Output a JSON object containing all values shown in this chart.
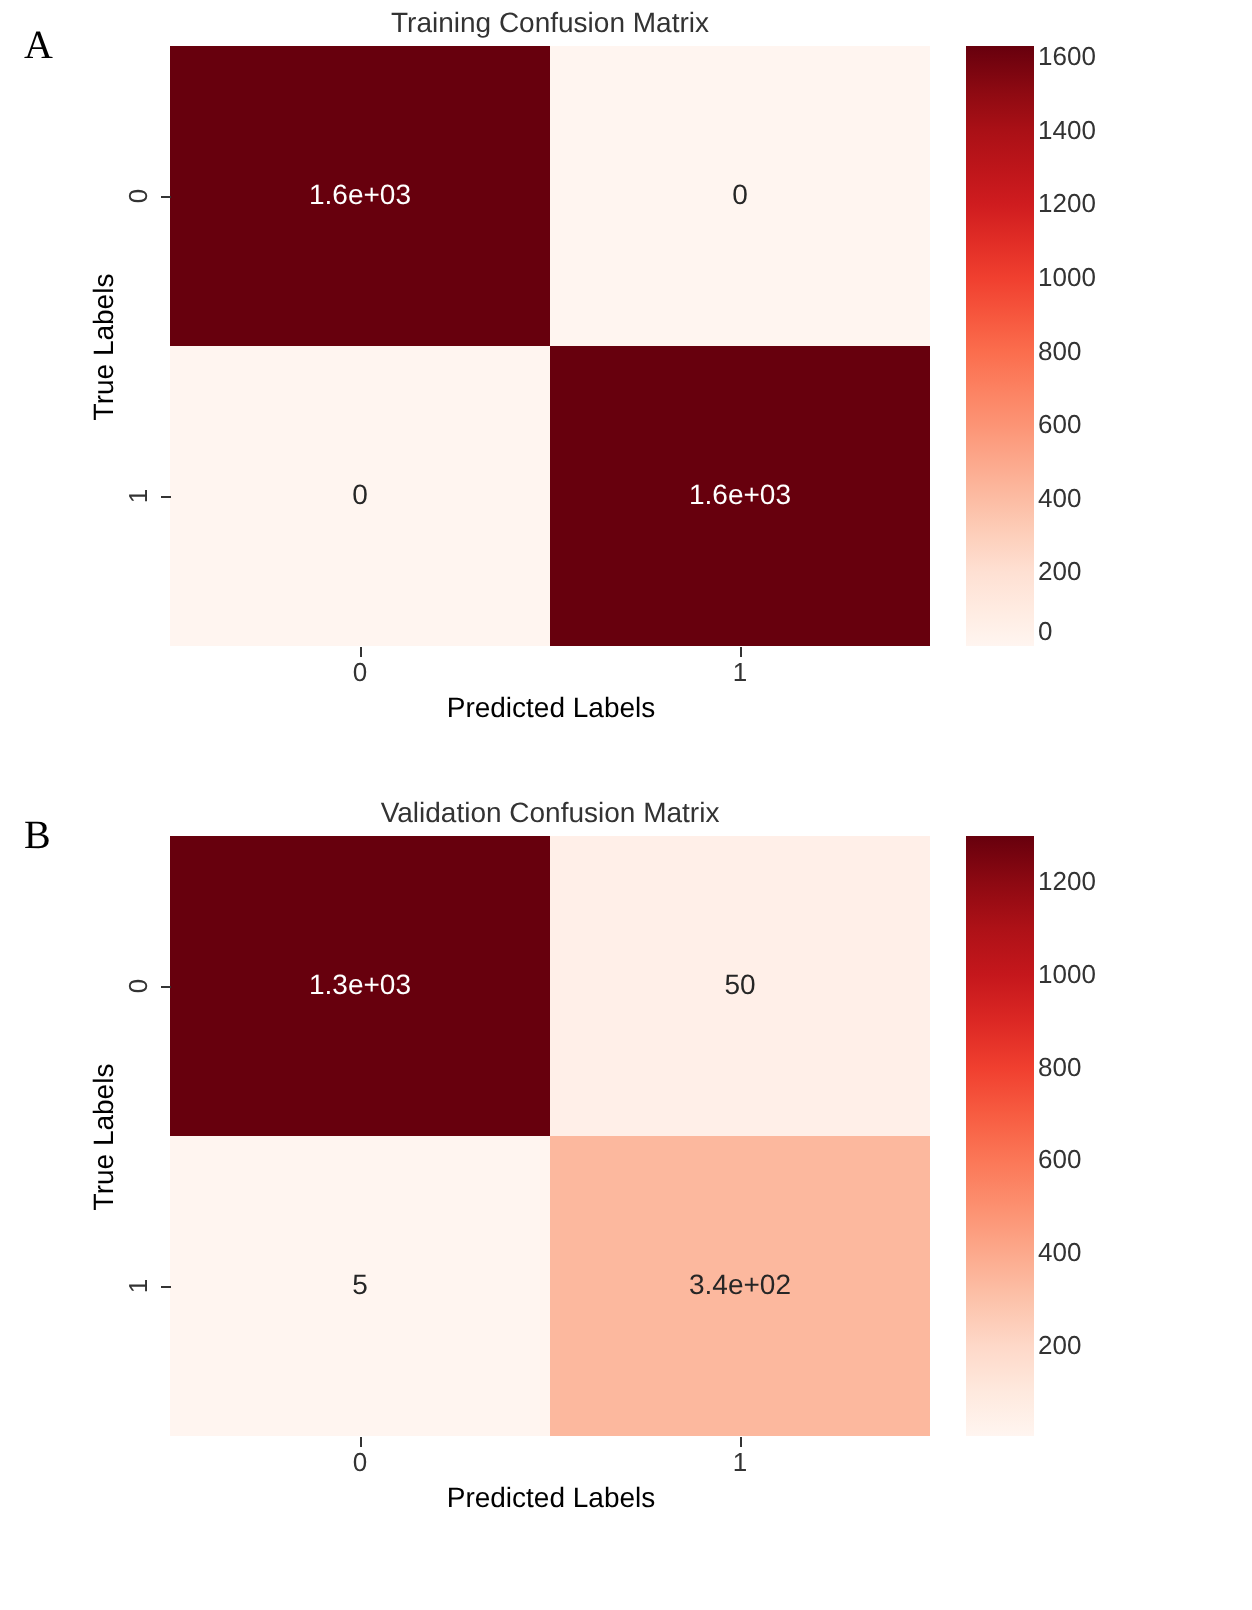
{
  "chart_data": [
    {
      "type": "heatmap",
      "title": "Training Confusion Matrix",
      "xlabel": "Predicted Labels",
      "ylabel": "True Labels",
      "categories": [
        "0",
        "1"
      ],
      "y_categories": [
        "0",
        "1"
      ],
      "cells": [
        [
          1630,
          0
        ],
        [
          0,
          1630
        ]
      ],
      "cell_labels": [
        [
          "1.6e+03",
          "0"
        ],
        [
          "0",
          "1.6e+03"
        ]
      ],
      "clim": [
        0,
        1630
      ],
      "cticks": [
        0,
        200,
        400,
        600,
        800,
        1000,
        1200,
        1400,
        1600
      ],
      "annotations": [
        "A"
      ]
    },
    {
      "type": "heatmap",
      "title": "Validation Confusion Matrix",
      "xlabel": "Predicted Labels",
      "ylabel": "True Labels",
      "categories": [
        "0",
        "1"
      ],
      "y_categories": [
        "0",
        "1"
      ],
      "cells": [
        [
          1300,
          50
        ],
        [
          5,
          340
        ]
      ],
      "cell_labels": [
        [
          "1.3e+03",
          "50"
        ],
        [
          "5",
          "3.4e+02"
        ]
      ],
      "clim": [
        5,
        1300
      ],
      "cticks": [
        200,
        400,
        600,
        800,
        1000,
        1200
      ],
      "annotations": [
        "B"
      ]
    }
  ]
}
